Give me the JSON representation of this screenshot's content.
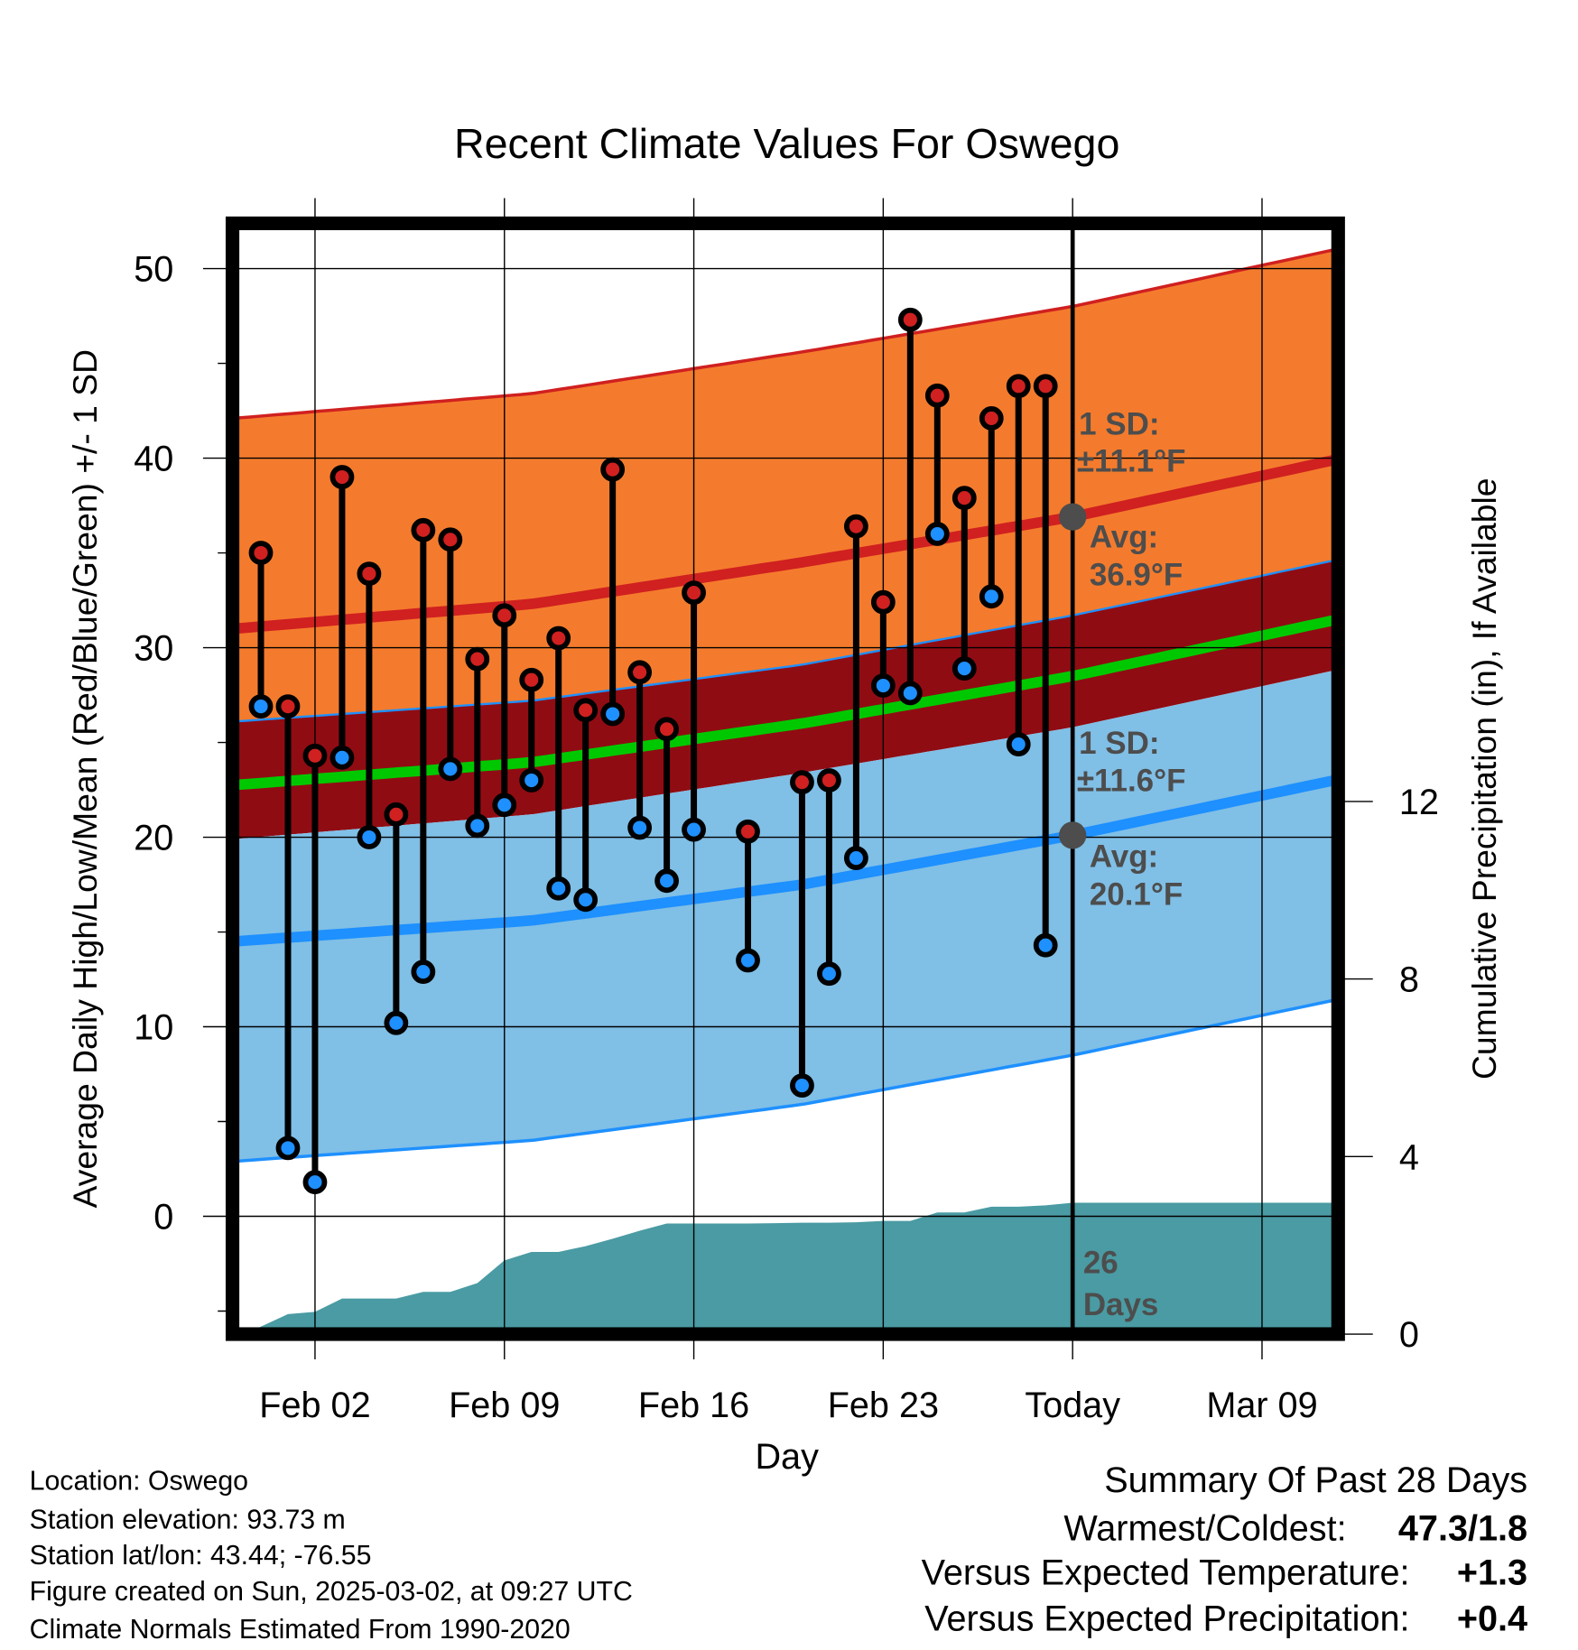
{
  "chart_data": {
    "type": "line",
    "title": "Recent Climate Values For Oswego",
    "xlabel": "Day",
    "ylabel": "Average Daily High/Low/Mean (Red/Blue/Green) +/- 1 SD",
    "y2label": "Cumulative Precipitation (in), If Available",
    "ylim": [
      -6,
      52
    ],
    "y2lim": [
      0,
      17.2
    ],
    "yticks": [
      "0",
      "10",
      "20",
      "30",
      "40",
      "50"
    ],
    "y2ticks": [
      "0",
      "4",
      "8",
      "12"
    ],
    "xticks": [
      "Feb 02",
      "Feb 09",
      "Feb 16",
      "Feb 23",
      "Today",
      "Mar 09"
    ],
    "xtick_days": [
      2,
      9,
      16,
      23,
      30,
      37
    ],
    "day_origin": "Jan 31",
    "grid": true,
    "observed": {
      "days": [
        0,
        1,
        2,
        3,
        4,
        5,
        6,
        7,
        8,
        9,
        10,
        11,
        12,
        13,
        14,
        15,
        16,
        18,
        20,
        21,
        22,
        23,
        24,
        25,
        26,
        27,
        28,
        29
      ],
      "high": [
        35.0,
        26.9,
        24.3,
        39.0,
        33.9,
        21.2,
        36.2,
        35.7,
        29.4,
        31.7,
        28.3,
        30.5,
        26.7,
        39.4,
        28.7,
        25.7,
        32.9,
        20.3,
        22.9,
        23.0,
        36.4,
        32.4,
        47.3,
        43.3,
        37.9,
        42.1,
        43.8,
        43.8
      ],
      "low": [
        26.9,
        3.6,
        1.8,
        24.2,
        20.0,
        10.2,
        12.9,
        23.6,
        20.6,
        21.7,
        23.0,
        17.3,
        16.7,
        26.5,
        20.5,
        17.7,
        20.4,
        13.5,
        6.9,
        12.8,
        18.9,
        28.0,
        27.6,
        36.0,
        28.9,
        32.7,
        24.9,
        14.3
      ]
    },
    "normals": {
      "avg_high_days": [
        -1,
        10,
        20,
        30,
        40
      ],
      "avg_high": [
        31.0,
        32.3,
        34.5,
        36.9,
        40.0
      ],
      "avg_low": [
        14.5,
        15.6,
        17.5,
        20.1,
        23.1
      ],
      "high_sd": 11.1,
      "low_sd": 11.6
    },
    "precip": {
      "days": [
        -0.6,
        1,
        2,
        3,
        4,
        5,
        6,
        7,
        8,
        9,
        10,
        11,
        12,
        13,
        14,
        15,
        16,
        17,
        18,
        19,
        20,
        21,
        22,
        23,
        24,
        25,
        26,
        27,
        28,
        29,
        30,
        39.7
      ],
      "cumulative": [
        0,
        0.45,
        0.5,
        0.8,
        0.8,
        0.8,
        0.95,
        0.95,
        1.15,
        1.66,
        1.85,
        1.85,
        1.98,
        2.15,
        2.33,
        2.49,
        2.49,
        2.49,
        2.49,
        2.5,
        2.51,
        2.51,
        2.52,
        2.55,
        2.55,
        2.74,
        2.74,
        2.87,
        2.87,
        2.9,
        2.96,
        2.96
      ]
    },
    "annotations": {
      "high_sd_line1": "1 SD:",
      "high_sd_line2": "±11.1°F",
      "high_avg_line1": "Avg:",
      "high_avg_line2": "36.9°F",
      "low_sd_line1": "1 SD:",
      "low_sd_line2": "±11.6°F",
      "low_avg_line1": "Avg:",
      "low_avg_line2": "20.1°F",
      "days_line1": "26",
      "days_line2": "Days"
    }
  },
  "colors": {
    "orange": "#F47B2D",
    "darkred": "#900C13",
    "lightblue": "#80BFE6",
    "red": "#D02020",
    "blue": "#1E90FF",
    "green": "#00C800",
    "teal": "#4A9BA3",
    "annot": "#4d4d4d"
  },
  "info": {
    "location": "Location: Oswego",
    "elevation": "Station elevation: 93.73 m",
    "latlon": "Station lat/lon: 43.44; -76.55",
    "created": "Figure created on Sun, 2025-03-02, at 09:27 UTC",
    "normals": "Climate Normals Estimated From 1990-2020"
  },
  "summary": {
    "title": "Summary Of Past 28 Days",
    "warmest_label": "Warmest/Coldest:",
    "warmest_value": "47.3/1.8",
    "temp_label": "Versus Expected Temperature:",
    "temp_value": "+1.3",
    "precip_label": "Versus Expected Precipitation:",
    "precip_value": "+0.4"
  }
}
